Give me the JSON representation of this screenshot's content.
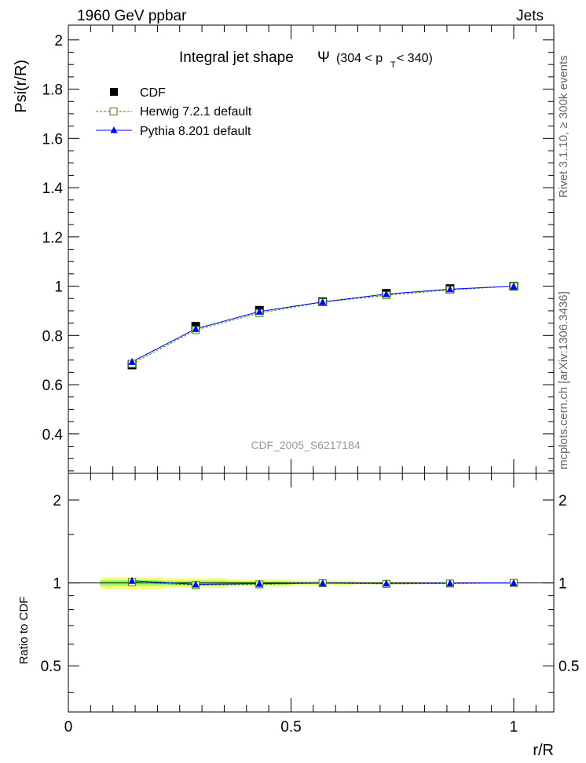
{
  "header": {
    "left": "1960 GeV ppbar",
    "right": "Jets"
  },
  "side_text": {
    "rivet": "Rivet 3.1.10, ≥ 300k events",
    "mcplots": "mcplots.cern.ch [arXiv:1306.3436]"
  },
  "colors": {
    "cdf": "#000000",
    "herwig": "#2e8b00",
    "herwig_fill": "#ffffff",
    "pythia": "#0000ff",
    "band_outer": "#ffff77",
    "band_inner": "#99ff66",
    "frame": "#000000",
    "watermark": "#999999"
  },
  "chart_data": [
    {
      "type": "line",
      "title_main": "Integral jet shape",
      "title_symbol": "Ψ",
      "title_range_pre": "(304 < p",
      "title_range_sub": "T",
      "title_range_post": " < 340)",
      "xlabel": "r/R",
      "ylabel": "Psi(r/R)",
      "watermark": "CDF_2005_S6217184",
      "xlim": [
        0,
        1.09
      ],
      "ylim": [
        0.24,
        2.06
      ],
      "yticks": [
        0.4,
        0.6,
        0.8,
        1,
        1.2,
        1.4,
        1.6,
        1.8,
        2
      ],
      "ytick_labels": [
        "0.4",
        "0.6",
        "0.8",
        "1",
        "1.2",
        "1.4",
        "1.6",
        "1.8",
        "2"
      ],
      "legend_position": "top-left",
      "x": [
        0.143,
        0.286,
        0.429,
        0.571,
        0.714,
        0.857,
        1.0
      ],
      "series": [
        {
          "name": "CDF",
          "marker": "filled-square",
          "values": [
            0.68,
            0.837,
            0.902,
            0.937,
            0.971,
            0.99,
            1.0
          ]
        },
        {
          "name": "Herwig 7.2.1 default",
          "marker": "open-square",
          "line": "dashed",
          "values": [
            0.685,
            0.822,
            0.891,
            0.935,
            0.963,
            0.985,
            1.0
          ]
        },
        {
          "name": "Pythia 8.201 default",
          "marker": "filled-triangle",
          "line": "solid",
          "values": [
            0.693,
            0.827,
            0.897,
            0.936,
            0.968,
            0.988,
            1.0
          ]
        }
      ]
    },
    {
      "type": "line",
      "ylabel": "Ratio to CDF",
      "xlabel": "r/R",
      "xlim": [
        0,
        1.09
      ],
      "ylim": [
        0.34,
        2.5
      ],
      "log_y": true,
      "xticks": [
        0,
        0.5,
        1
      ],
      "xtick_labels": [
        "0",
        "0.5",
        "1"
      ],
      "yticks": [
        0.5,
        1,
        2
      ],
      "ytick_labels": [
        "0.5",
        "1",
        "2"
      ],
      "x": [
        0.143,
        0.286,
        0.429,
        0.571,
        0.714,
        0.857,
        1.0
      ],
      "bins": [
        [
          0.071,
          0.214
        ],
        [
          0.214,
          0.357
        ],
        [
          0.357,
          0.5
        ],
        [
          0.5,
          0.643
        ],
        [
          0.643,
          0.786
        ],
        [
          0.786,
          0.929
        ],
        [
          0.929,
          1.071
        ]
      ],
      "band_outer": [
        0.05,
        0.04,
        0.028,
        0.02,
        0.012,
        0.006,
        0.0
      ],
      "band_inner": [
        0.025,
        0.02,
        0.014,
        0.01,
        0.006,
        0.003,
        0.0
      ],
      "series": [
        {
          "name": "Herwig 7.2.1 default",
          "values": [
            1.007,
            0.982,
            0.988,
            0.998,
            0.992,
            0.995,
            1.0
          ]
        },
        {
          "name": "Pythia 8.201 default",
          "values": [
            1.019,
            0.988,
            0.994,
            0.999,
            0.997,
            0.998,
            1.0
          ]
        }
      ]
    }
  ]
}
